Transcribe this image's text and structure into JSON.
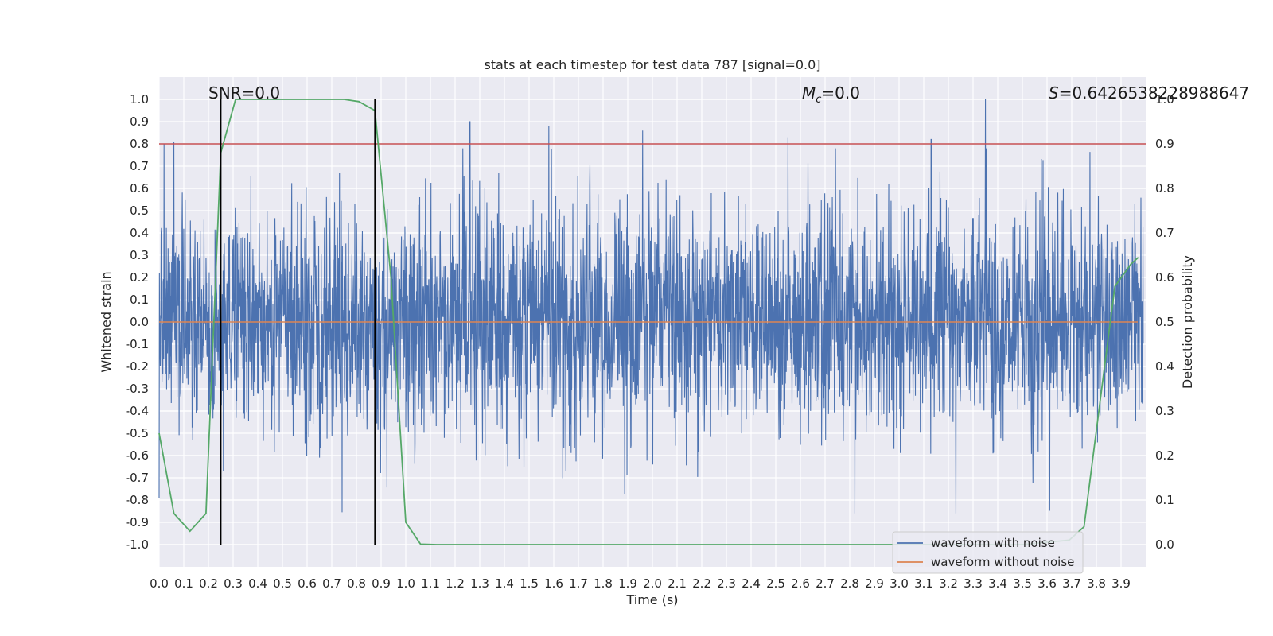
{
  "chart_data": {
    "type": "line",
    "title": "stats at each timestep for test data 787 [signal=0.0]",
    "xlabel": "Time (s)",
    "ylabel": "Whitened strain",
    "y2label": "Detection probability",
    "xlim": [
      0.0,
      4.0
    ],
    "ylim": [
      -1.1,
      1.1
    ],
    "y2lim": [
      -0.05,
      1.05
    ],
    "x_ticks": [
      "0.0",
      "0.1",
      "0.2",
      "0.3",
      "0.4",
      "0.5",
      "0.6",
      "0.7",
      "0.8",
      "0.9",
      "1.0",
      "1.1",
      "1.2",
      "1.3",
      "1.4",
      "1.5",
      "1.6",
      "1.7",
      "1.8",
      "1.9",
      "2.0",
      "2.1",
      "2.2",
      "2.3",
      "2.4",
      "2.5",
      "2.6",
      "2.7",
      "2.8",
      "2.9",
      "3.0",
      "3.1",
      "3.2",
      "3.3",
      "3.4",
      "3.5",
      "3.6",
      "3.7",
      "3.8",
      "3.9"
    ],
    "y_ticks": [
      "-1.0",
      "-0.9",
      "-0.8",
      "-0.7",
      "-0.6",
      "-0.5",
      "-0.4",
      "-0.3",
      "-0.2",
      "-0.1",
      "0.0",
      "0.1",
      "0.2",
      "0.3",
      "0.4",
      "0.5",
      "0.6",
      "0.7",
      "0.8",
      "0.9",
      "1.0"
    ],
    "y2_ticks": [
      "0.0",
      "0.1",
      "0.2",
      "0.3",
      "0.4",
      "0.5",
      "0.6",
      "0.7",
      "0.8",
      "0.9",
      "1.0"
    ],
    "grid": true,
    "legend_position": "bottom-right",
    "annotations": {
      "snr_text": "SNR=0.0",
      "mc_symbol": "M",
      "mc_sub": "c",
      "mc_value": "=0.0",
      "s_symbol": "S",
      "s_value": "=0.6426538228988647"
    },
    "threshold_y2": 0.9,
    "vertical_markers_x": [
      0.25,
      0.875
    ],
    "series": [
      {
        "name": "waveform with noise",
        "color": "#4c72b0",
        "style": "dense noise, roughly within [-0.97, 1.0]",
        "peaks_x": [
          0.02,
          0.06,
          1.26,
          1.58,
          1.96,
          2.55,
          3.13,
          3.35
        ],
        "peaks_y": [
          0.8,
          0.81,
          0.9,
          0.88,
          0.86,
          0.83,
          0.82,
          1.0
        ]
      },
      {
        "name": "waveform without noise",
        "color": "#dd8452",
        "y_constant": 0.0
      },
      {
        "name": "detection probability",
        "color": "#55a868",
        "x": [
          0.0,
          0.06,
          0.125,
          0.19,
          0.25,
          0.31,
          0.5,
          0.75,
          0.81,
          0.875,
          0.94,
          1.0,
          1.06,
          1.125,
          1.5,
          2.0,
          2.5,
          3.0,
          3.5,
          3.69,
          3.75,
          3.81,
          3.875,
          3.94,
          3.97
        ],
        "y": [
          0.25,
          0.07,
          0.03,
          0.07,
          0.88,
          1.0,
          1.0,
          1.0,
          0.995,
          0.975,
          0.6,
          0.05,
          0.001,
          0.0,
          0.0,
          0.0,
          0.0,
          0.0,
          0.0,
          0.01,
          0.04,
          0.3,
          0.58,
          0.63,
          0.645
        ]
      }
    ]
  }
}
